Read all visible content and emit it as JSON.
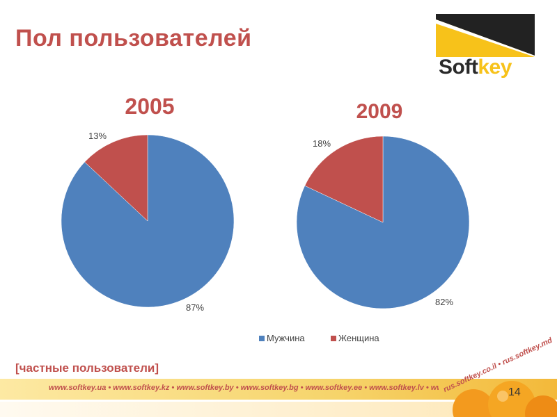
{
  "title": "Пол пользователей",
  "logo": {
    "text": "Softkey"
  },
  "subtitle": "[частные пользователи]",
  "footer": {
    "urls": "www.softkey.ua • www.softkey.kz • www.softkey.by • www.softkey.bg • www.softkey.ee • www.softkey.lv • www.softkey.lt • www.softkey.pl •",
    "urls_diagonal": "rus.softkey.co.il • rus.softkey.md"
  },
  "page_number": "14",
  "colors": {
    "male": "#4f81bd",
    "female": "#c0504d",
    "title": "#c0504d"
  },
  "chart_data": [
    {
      "type": "pie",
      "title": "2005",
      "categories": [
        "Мужчина",
        "Женщина"
      ],
      "values": [
        87,
        13
      ],
      "labels": [
        "87%",
        "13%"
      ]
    },
    {
      "type": "pie",
      "title": "2009",
      "categories": [
        "Мужчина",
        "Женщина"
      ],
      "values": [
        82,
        18
      ],
      "labels": [
        "82%",
        "18%"
      ]
    }
  ],
  "legend": {
    "placement": "bottom",
    "items": [
      {
        "name": "Мужчина",
        "color": "#4f81bd"
      },
      {
        "name": "Женщина",
        "color": "#c0504d"
      }
    ]
  }
}
